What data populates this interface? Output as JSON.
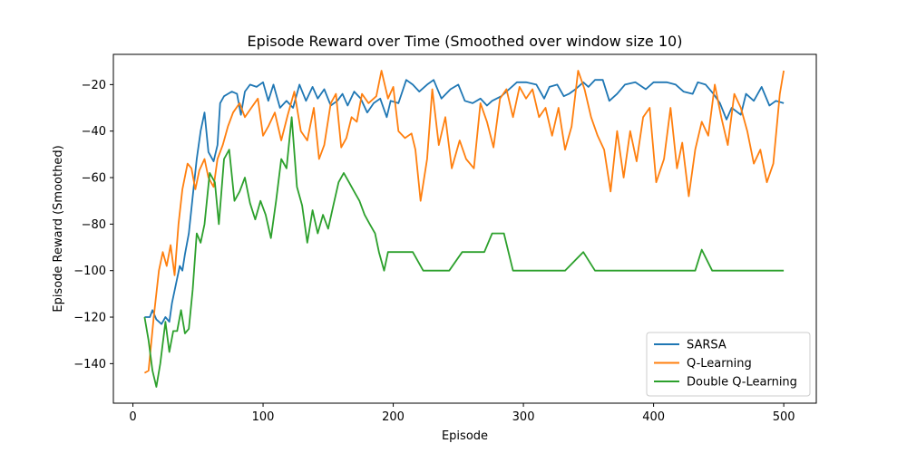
{
  "chart_data": {
    "type": "line",
    "title": "Episode Reward over Time (Smoothed over window size 10)",
    "xlabel": "Episode",
    "ylabel": "Episode Reward (Smoothed)",
    "xlim": [
      -15,
      525
    ],
    "ylim": [
      -157,
      -7
    ],
    "xticks": [
      0,
      100,
      200,
      300,
      400,
      500
    ],
    "yticks": [
      -140,
      -120,
      -100,
      -80,
      -60,
      -40,
      -20
    ],
    "legend": "lower-right",
    "grid": false,
    "series": [
      {
        "name": "SARSA",
        "color": "#1f77b4",
        "points": [
          [
            9,
            -120
          ],
          [
            13,
            -120
          ],
          [
            15,
            -117
          ],
          [
            18,
            -121
          ],
          [
            22,
            -123
          ],
          [
            25,
            -120
          ],
          [
            28,
            -122
          ],
          [
            30,
            -114
          ],
          [
            33,
            -106
          ],
          [
            36,
            -98
          ],
          [
            38,
            -100
          ],
          [
            40,
            -93
          ],
          [
            43,
            -84
          ],
          [
            46,
            -68
          ],
          [
            49,
            -52
          ],
          [
            52,
            -40
          ],
          [
            55,
            -32
          ],
          [
            58,
            -49
          ],
          [
            62,
            -53
          ],
          [
            65,
            -46
          ],
          [
            67,
            -28
          ],
          [
            70,
            -25
          ],
          [
            73,
            -24
          ],
          [
            76,
            -23
          ],
          [
            80,
            -24
          ],
          [
            83,
            -33
          ],
          [
            86,
            -23
          ],
          [
            90,
            -20
          ],
          [
            95,
            -21
          ],
          [
            100,
            -19
          ],
          [
            104,
            -27
          ],
          [
            108,
            -20
          ],
          [
            113,
            -30
          ],
          [
            118,
            -27
          ],
          [
            123,
            -30
          ],
          [
            128,
            -20
          ],
          [
            133,
            -27
          ],
          [
            138,
            -21
          ],
          [
            142,
            -26
          ],
          [
            147,
            -22
          ],
          [
            152,
            -29
          ],
          [
            157,
            -27
          ],
          [
            161,
            -24
          ],
          [
            165,
            -29
          ],
          [
            170,
            -23
          ],
          [
            175,
            -26
          ],
          [
            180,
            -32
          ],
          [
            185,
            -28
          ],
          [
            190,
            -26
          ],
          [
            195,
            -34
          ],
          [
            198,
            -27
          ],
          [
            204,
            -28
          ],
          [
            210,
            -18
          ],
          [
            215,
            -20
          ],
          [
            220,
            -23
          ],
          [
            226,
            -20
          ],
          [
            231,
            -18
          ],
          [
            237,
            -26
          ],
          [
            244,
            -22
          ],
          [
            250,
            -20
          ],
          [
            255,
            -27
          ],
          [
            261,
            -28
          ],
          [
            267,
            -26
          ],
          [
            272,
            -29
          ],
          [
            276,
            -27
          ],
          [
            283,
            -25
          ],
          [
            289,
            -22
          ],
          [
            295,
            -19
          ],
          [
            302,
            -19
          ],
          [
            310,
            -20
          ],
          [
            316,
            -26
          ],
          [
            320,
            -21
          ],
          [
            326,
            -20
          ],
          [
            331,
            -25
          ],
          [
            335,
            -24
          ],
          [
            340,
            -22
          ],
          [
            346,
            -19
          ],
          [
            350,
            -21
          ],
          [
            355,
            -18
          ],
          [
            361,
            -18
          ],
          [
            366,
            -27
          ],
          [
            372,
            -24
          ],
          [
            378,
            -20
          ],
          [
            386,
            -19
          ],
          [
            394,
            -22
          ],
          [
            400,
            -19
          ],
          [
            410,
            -19
          ],
          [
            417,
            -20
          ],
          [
            423,
            -23
          ],
          [
            430,
            -24
          ],
          [
            434,
            -19
          ],
          [
            440,
            -20
          ],
          [
            446,
            -24
          ],
          [
            451,
            -28
          ],
          [
            456,
            -35
          ],
          [
            460,
            -30
          ],
          [
            467,
            -33
          ],
          [
            471,
            -24
          ],
          [
            477,
            -27
          ],
          [
            483,
            -21
          ],
          [
            489,
            -29
          ],
          [
            494,
            -27
          ],
          [
            500,
            -28
          ]
        ]
      },
      {
        "name": "Q-Learning",
        "color": "#ff7f0e",
        "points": [
          [
            9,
            -144
          ],
          [
            12,
            -143
          ],
          [
            16,
            -120
          ],
          [
            20,
            -100
          ],
          [
            23,
            -92
          ],
          [
            26,
            -98
          ],
          [
            29,
            -89
          ],
          [
            32,
            -102
          ],
          [
            35,
            -80
          ],
          [
            38,
            -65
          ],
          [
            42,
            -54
          ],
          [
            45,
            -56
          ],
          [
            48,
            -65
          ],
          [
            51,
            -57
          ],
          [
            55,
            -52
          ],
          [
            58,
            -60
          ],
          [
            62,
            -64
          ],
          [
            65,
            -52
          ],
          [
            69,
            -46
          ],
          [
            73,
            -38
          ],
          [
            77,
            -32
          ],
          [
            82,
            -28
          ],
          [
            86,
            -34
          ],
          [
            91,
            -30
          ],
          [
            96,
            -26
          ],
          [
            100,
            -42
          ],
          [
            104,
            -38
          ],
          [
            109,
            -32
          ],
          [
            114,
            -44
          ],
          [
            119,
            -33
          ],
          [
            124,
            -23
          ],
          [
            129,
            -40
          ],
          [
            134,
            -44
          ],
          [
            139,
            -30
          ],
          [
            143,
            -52
          ],
          [
            147,
            -46
          ],
          [
            152,
            -28
          ],
          [
            156,
            -24
          ],
          [
            160,
            -47
          ],
          [
            164,
            -43
          ],
          [
            168,
            -34
          ],
          [
            172,
            -36
          ],
          [
            176,
            -24
          ],
          [
            181,
            -28
          ],
          [
            187,
            -25
          ],
          [
            191,
            -14
          ],
          [
            196,
            -26
          ],
          [
            200,
            -21
          ],
          [
            204,
            -40
          ],
          [
            209,
            -43
          ],
          [
            214,
            -41
          ],
          [
            217,
            -48
          ],
          [
            221,
            -70
          ],
          [
            226,
            -52
          ],
          [
            230,
            -22
          ],
          [
            235,
            -46
          ],
          [
            240,
            -34
          ],
          [
            245,
            -56
          ],
          [
            251,
            -44
          ],
          [
            256,
            -52
          ],
          [
            262,
            -56
          ],
          [
            267,
            -28
          ],
          [
            272,
            -36
          ],
          [
            277,
            -47
          ],
          [
            282,
            -26
          ],
          [
            287,
            -22
          ],
          [
            292,
            -34
          ],
          [
            297,
            -21
          ],
          [
            302,
            -26
          ],
          [
            307,
            -22
          ],
          [
            312,
            -34
          ],
          [
            317,
            -30
          ],
          [
            322,
            -42
          ],
          [
            327,
            -30
          ],
          [
            332,
            -48
          ],
          [
            337,
            -38
          ],
          [
            342,
            -14
          ],
          [
            347,
            -22
          ],
          [
            352,
            -34
          ],
          [
            357,
            -42
          ],
          [
            362,
            -48
          ],
          [
            367,
            -66
          ],
          [
            372,
            -40
          ],
          [
            377,
            -60
          ],
          [
            382,
            -40
          ],
          [
            387,
            -53
          ],
          [
            392,
            -34
          ],
          [
            397,
            -30
          ],
          [
            402,
            -62
          ],
          [
            408,
            -52
          ],
          [
            413,
            -30
          ],
          [
            418,
            -56
          ],
          [
            422,
            -45
          ],
          [
            427,
            -68
          ],
          [
            432,
            -48
          ],
          [
            437,
            -36
          ],
          [
            442,
            -42
          ],
          [
            447,
            -20
          ],
          [
            452,
            -34
          ],
          [
            457,
            -46
          ],
          [
            462,
            -24
          ],
          [
            467,
            -30
          ],
          [
            472,
            -40
          ],
          [
            477,
            -54
          ],
          [
            482,
            -48
          ],
          [
            487,
            -62
          ],
          [
            492,
            -54
          ],
          [
            497,
            -24
          ],
          [
            500,
            -14
          ]
        ]
      },
      {
        "name": "Double Q-Learning",
        "color": "#2ca02c",
        "points": [
          [
            9,
            -120
          ],
          [
            12,
            -130
          ],
          [
            15,
            -143
          ],
          [
            18,
            -150
          ],
          [
            21,
            -140
          ],
          [
            25,
            -122
          ],
          [
            28,
            -135
          ],
          [
            31,
            -126
          ],
          [
            34,
            -126
          ],
          [
            37,
            -117
          ],
          [
            40,
            -127
          ],
          [
            43,
            -125
          ],
          [
            46,
            -108
          ],
          [
            49,
            -84
          ],
          [
            52,
            -88
          ],
          [
            55,
            -80
          ],
          [
            59,
            -58
          ],
          [
            63,
            -62
          ],
          [
            66,
            -80
          ],
          [
            70,
            -52
          ],
          [
            74,
            -48
          ],
          [
            78,
            -70
          ],
          [
            82,
            -66
          ],
          [
            86,
            -60
          ],
          [
            90,
            -71
          ],
          [
            94,
            -78
          ],
          [
            98,
            -70
          ],
          [
            102,
            -76
          ],
          [
            106,
            -86
          ],
          [
            110,
            -70
          ],
          [
            114,
            -52
          ],
          [
            118,
            -56
          ],
          [
            122,
            -34
          ],
          [
            126,
            -64
          ],
          [
            130,
            -72
          ],
          [
            134,
            -88
          ],
          [
            138,
            -74
          ],
          [
            142,
            -84
          ],
          [
            146,
            -76
          ],
          [
            150,
            -82
          ],
          [
            154,
            -72
          ],
          [
            158,
            -62
          ],
          [
            162,
            -58
          ],
          [
            166,
            -62
          ],
          [
            170,
            -66
          ],
          [
            174,
            -70
          ],
          [
            178,
            -76
          ],
          [
            182,
            -80
          ],
          [
            186,
            -84
          ],
          [
            189,
            -92
          ],
          [
            193,
            -100
          ],
          [
            196,
            -92
          ],
          [
            203,
            -92
          ],
          [
            215,
            -92
          ],
          [
            223,
            -100
          ],
          [
            243,
            -100
          ],
          [
            253,
            -92
          ],
          [
            270,
            -92
          ],
          [
            276,
            -84
          ],
          [
            285,
            -84
          ],
          [
            292,
            -100
          ],
          [
            305,
            -100
          ],
          [
            332,
            -100
          ],
          [
            346,
            -92
          ],
          [
            355,
            -100
          ],
          [
            393,
            -100
          ],
          [
            432,
            -100
          ],
          [
            437,
            -91
          ],
          [
            445,
            -100
          ],
          [
            500,
            -100
          ]
        ]
      }
    ]
  }
}
